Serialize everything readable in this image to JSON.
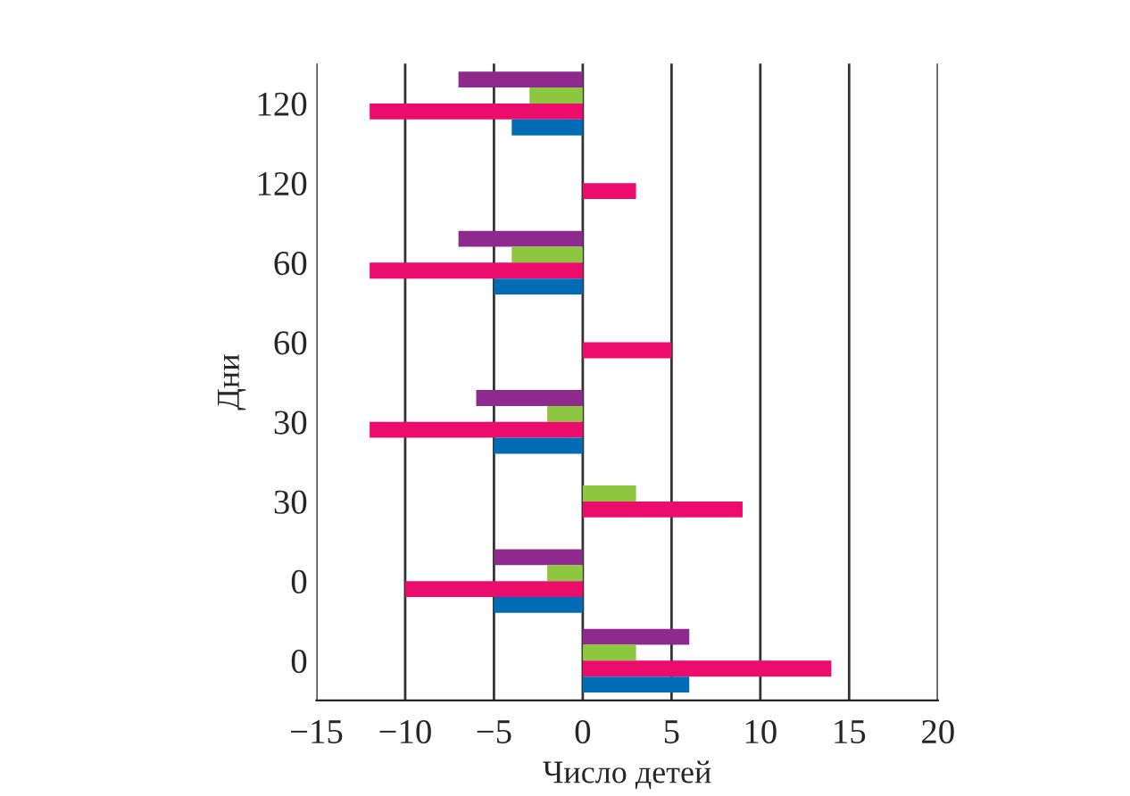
{
  "chart_data": {
    "type": "bar",
    "orientation": "horizontal",
    "xlabel": "Число детей",
    "ylabel": "Дни",
    "categories": [
      "120",
      "120",
      "60",
      "60",
      "30",
      "30",
      "0",
      "0"
    ],
    "series": [
      {
        "color": "#8e2a8e",
        "values": [
          -7,
          null,
          -7,
          null,
          -6,
          null,
          -5,
          6
        ]
      },
      {
        "color": "#8dc63f",
        "values": [
          -3,
          null,
          -4,
          null,
          -2,
          3,
          -2,
          3
        ]
      },
      {
        "color": "#ec0c6c",
        "values": [
          -12,
          3,
          -12,
          5,
          -12,
          9,
          -10,
          14
        ]
      },
      {
        "color": "#006cb5",
        "values": [
          -4,
          null,
          -5,
          null,
          -5,
          null,
          -5,
          6
        ]
      }
    ],
    "xlim": [
      -15,
      20
    ],
    "xticks": [
      -15,
      -10,
      -5,
      0,
      5,
      10,
      15,
      20
    ],
    "grid": "x",
    "legend": false
  }
}
